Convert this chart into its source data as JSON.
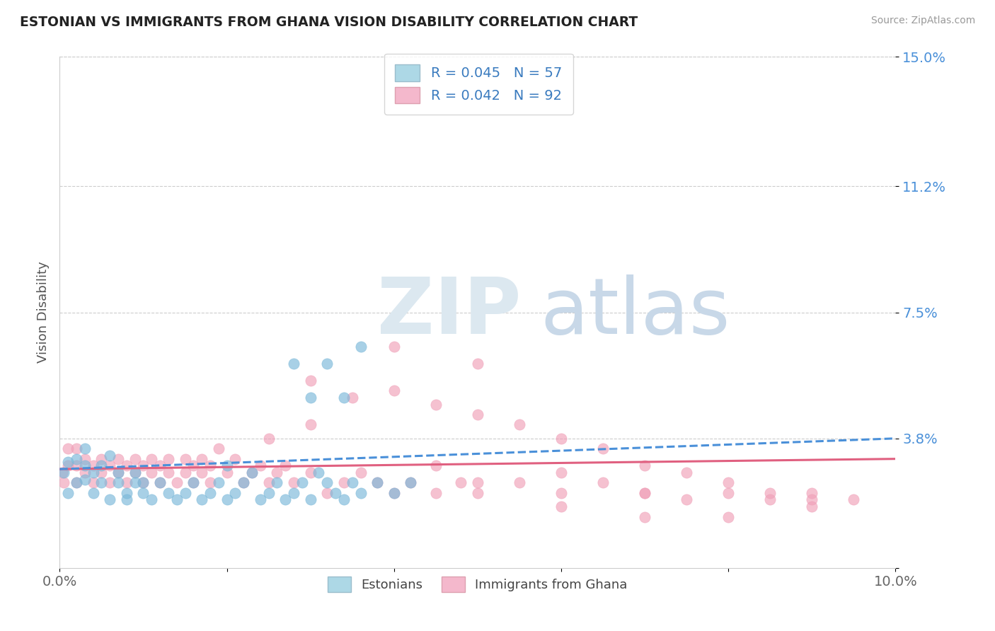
{
  "title": "ESTONIAN VS IMMIGRANTS FROM GHANA VISION DISABILITY CORRELATION CHART",
  "source": "Source: ZipAtlas.com",
  "ylabel": "Vision Disability",
  "xlim": [
    0.0,
    0.1
  ],
  "ylim": [
    0.0,
    0.15
  ],
  "yticks": [
    0.0,
    0.038,
    0.075,
    0.112,
    0.15
  ],
  "ytick_labels": [
    "",
    "3.8%",
    "7.5%",
    "11.2%",
    "15.0%"
  ],
  "xticks": [
    0.0,
    0.02,
    0.04,
    0.06,
    0.08,
    0.1
  ],
  "xtick_labels": [
    "0.0%",
    "",
    "",
    "",
    "",
    "10.0%"
  ],
  "blue_scatter_color": "#7ab8d9",
  "pink_scatter_color": "#f0a0b8",
  "blue_line_color": "#4a90d9",
  "pink_line_color": "#e06080",
  "tick_color_y": "#4a90d9",
  "legend_label_blue": "Estonians",
  "legend_label_pink": "Immigrants from Ghana",
  "title_color": "#222222",
  "blue_r": "0.045",
  "blue_n": "57",
  "pink_r": "0.042",
  "pink_n": "92",
  "blue_scatter_x": [
    0.0005,
    0.001,
    0.001,
    0.002,
    0.002,
    0.003,
    0.003,
    0.003,
    0.004,
    0.004,
    0.005,
    0.005,
    0.006,
    0.006,
    0.007,
    0.007,
    0.008,
    0.008,
    0.009,
    0.009,
    0.01,
    0.01,
    0.011,
    0.012,
    0.013,
    0.014,
    0.015,
    0.016,
    0.017,
    0.018,
    0.019,
    0.02,
    0.02,
    0.021,
    0.022,
    0.023,
    0.024,
    0.025,
    0.026,
    0.027,
    0.028,
    0.029,
    0.03,
    0.031,
    0.032,
    0.033,
    0.034,
    0.035,
    0.036,
    0.038,
    0.04,
    0.042,
    0.028,
    0.03,
    0.032,
    0.034,
    0.036
  ],
  "blue_scatter_y": [
    0.028,
    0.022,
    0.031,
    0.025,
    0.032,
    0.026,
    0.03,
    0.035,
    0.022,
    0.028,
    0.025,
    0.03,
    0.02,
    0.033,
    0.025,
    0.028,
    0.02,
    0.022,
    0.025,
    0.028,
    0.022,
    0.025,
    0.02,
    0.025,
    0.022,
    0.02,
    0.022,
    0.025,
    0.02,
    0.022,
    0.025,
    0.02,
    0.03,
    0.022,
    0.025,
    0.028,
    0.02,
    0.022,
    0.025,
    0.02,
    0.022,
    0.025,
    0.02,
    0.028,
    0.025,
    0.022,
    0.02,
    0.025,
    0.022,
    0.025,
    0.022,
    0.025,
    0.06,
    0.05,
    0.06,
    0.05,
    0.065
  ],
  "pink_scatter_x": [
    0.0003,
    0.0005,
    0.001,
    0.001,
    0.002,
    0.002,
    0.002,
    0.003,
    0.003,
    0.004,
    0.004,
    0.005,
    0.005,
    0.006,
    0.006,
    0.007,
    0.007,
    0.008,
    0.008,
    0.009,
    0.009,
    0.01,
    0.01,
    0.011,
    0.011,
    0.012,
    0.012,
    0.013,
    0.013,
    0.014,
    0.015,
    0.015,
    0.016,
    0.016,
    0.017,
    0.017,
    0.018,
    0.018,
    0.019,
    0.02,
    0.021,
    0.022,
    0.023,
    0.024,
    0.025,
    0.026,
    0.027,
    0.028,
    0.03,
    0.032,
    0.034,
    0.036,
    0.038,
    0.04,
    0.042,
    0.045,
    0.048,
    0.05,
    0.055,
    0.06,
    0.065,
    0.07,
    0.075,
    0.08,
    0.085,
    0.09,
    0.03,
    0.035,
    0.04,
    0.045,
    0.05,
    0.055,
    0.06,
    0.065,
    0.07,
    0.075,
    0.08,
    0.085,
    0.09,
    0.025,
    0.03,
    0.045,
    0.05,
    0.06,
    0.07,
    0.08,
    0.09,
    0.095,
    0.04,
    0.05,
    0.06,
    0.07
  ],
  "pink_scatter_y": [
    0.028,
    0.025,
    0.03,
    0.035,
    0.025,
    0.03,
    0.035,
    0.028,
    0.032,
    0.025,
    0.03,
    0.028,
    0.032,
    0.025,
    0.03,
    0.028,
    0.032,
    0.025,
    0.03,
    0.028,
    0.032,
    0.025,
    0.03,
    0.028,
    0.032,
    0.025,
    0.03,
    0.028,
    0.032,
    0.025,
    0.028,
    0.032,
    0.025,
    0.03,
    0.028,
    0.032,
    0.025,
    0.03,
    0.035,
    0.028,
    0.032,
    0.025,
    0.028,
    0.03,
    0.025,
    0.028,
    0.03,
    0.025,
    0.028,
    0.022,
    0.025,
    0.028,
    0.025,
    0.022,
    0.025,
    0.022,
    0.025,
    0.022,
    0.025,
    0.022,
    0.025,
    0.022,
    0.02,
    0.022,
    0.02,
    0.022,
    0.055,
    0.05,
    0.052,
    0.048,
    0.045,
    0.042,
    0.038,
    0.035,
    0.03,
    0.028,
    0.025,
    0.022,
    0.02,
    0.038,
    0.042,
    0.03,
    0.025,
    0.018,
    0.015,
    0.015,
    0.018,
    0.02,
    0.065,
    0.06,
    0.028,
    0.022
  ]
}
